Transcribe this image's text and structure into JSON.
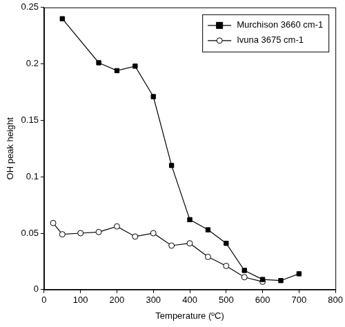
{
  "chart_data": {
    "type": "line",
    "x_label": "Temperature (ºC)",
    "y_label": "OH peak height",
    "xlim": [
      0,
      800
    ],
    "xticks": [
      0,
      100,
      200,
      300,
      400,
      500,
      600,
      700,
      800
    ],
    "ylim": [
      0,
      0.25
    ],
    "yticks": [
      0,
      0.05,
      0.1,
      0.15,
      0.2,
      0.25
    ],
    "grid": false,
    "legend": "top-right",
    "series": [
      {
        "name": "Murchison 3660 cm-1",
        "color": "#000000",
        "marker": "square",
        "line_style": "solid",
        "x": [
          50,
          150,
          200,
          250,
          300,
          350,
          400,
          450,
          500,
          550,
          600,
          650,
          700
        ],
        "values": [
          0.24,
          0.201,
          0.194,
          0.198,
          0.171,
          0.11,
          0.062,
          0.053,
          0.041,
          0.017,
          0.009,
          0.008,
          0.014
        ]
      },
      {
        "name": "Ivuna 3675 cm-1",
        "color": "#000000",
        "marker": "circle-open",
        "line_style": "solid",
        "x": [
          25,
          50,
          100,
          150,
          200,
          250,
          300,
          350,
          400,
          450,
          500,
          550,
          600
        ],
        "values": [
          0.059,
          0.049,
          0.05,
          0.051,
          0.056,
          0.047,
          0.05,
          0.039,
          0.041,
          0.029,
          0.021,
          0.011,
          0.007
        ]
      }
    ]
  }
}
